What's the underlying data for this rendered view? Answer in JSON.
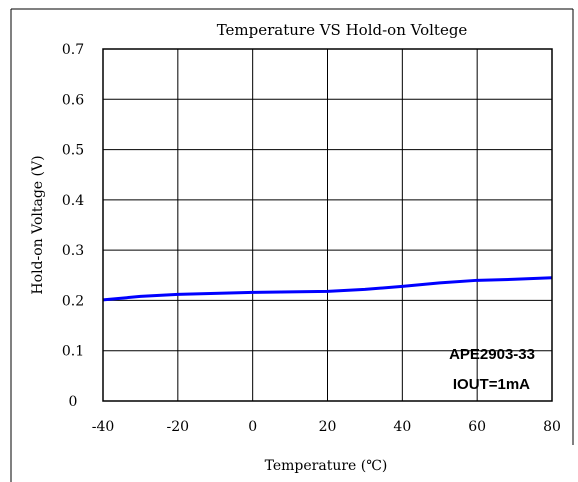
{
  "chart_data": {
    "type": "line",
    "title": "Temperature VS Hold-on Voltege",
    "xlabel": "Temperature (℃)",
    "ylabel": "Hold-on Voltage (V)",
    "xlim": [
      -40,
      80
    ],
    "ylim": [
      0,
      0.7
    ],
    "xticks": [
      -40,
      -20,
      0,
      20,
      40,
      60,
      80
    ],
    "xtick_labels": [
      "-40",
      "-20",
      "0",
      "20",
      "40",
      "60",
      "80"
    ],
    "yticks": [
      0,
      0.1,
      0.2,
      0.3,
      0.4,
      0.5,
      0.6,
      0.7
    ],
    "ytick_labels": [
      "0",
      "0.1",
      "0.2",
      "0.3",
      "0.4",
      "0.5",
      "0.6",
      "0.7"
    ],
    "grid": true,
    "series": [
      {
        "color": "#0000ff",
        "x": [
          -40,
          -30,
          -20,
          -10,
          0,
          10,
          20,
          30,
          40,
          50,
          60,
          70,
          80
        ],
        "y": [
          0.201,
          0.208,
          0.212,
          0.214,
          0.216,
          0.217,
          0.218,
          0.222,
          0.228,
          0.235,
          0.24,
          0.242,
          0.245
        ]
      }
    ],
    "annotations": [
      "APE2903-33",
      "IOUT=1mA"
    ]
  }
}
